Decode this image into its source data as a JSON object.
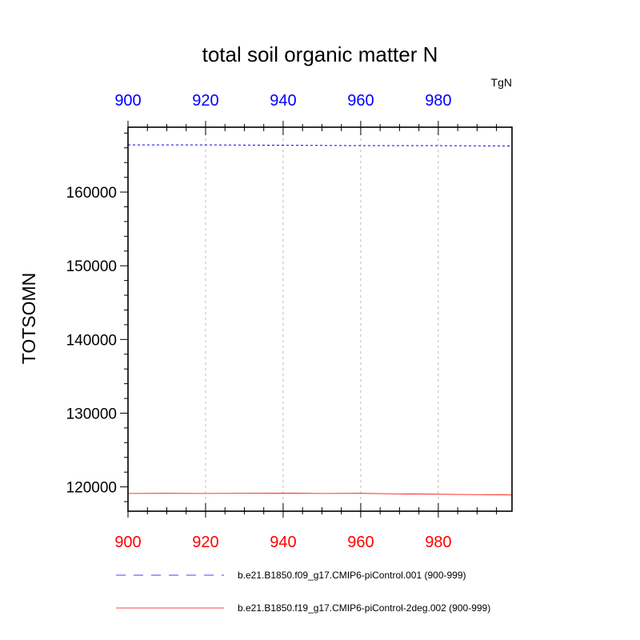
{
  "chart_data": {
    "type": "line",
    "title": "total soil organic matter N",
    "units": "TgN",
    "ylabel": "TOTSOMN",
    "xlim": [
      900,
      999
    ],
    "ylim": [
      116700,
      168800
    ],
    "x_ticks": [
      900,
      920,
      940,
      960,
      980
    ],
    "y_ticks": [
      120000,
      130000,
      140000,
      150000,
      160000
    ],
    "y_tick_labels": [
      "120000",
      "130000",
      "140000",
      "150000",
      "160000"
    ],
    "x_tick_labels_top": [
      "900",
      "920",
      "940",
      "960",
      "980"
    ],
    "x_tick_labels_bottom": [
      "900",
      "920",
      "940",
      "960",
      "980"
    ],
    "top_axis_color": "#0000ff",
    "bottom_axis_color": "#ff0000",
    "vertical_grid": true,
    "series": [
      {
        "name": "b.e21.B1850.f09_g17.CMIP6-piControl.001 (900-999)",
        "color": "#0000ff",
        "style": "dashed",
        "x": [
          900,
          920,
          940,
          960,
          980,
          999
        ],
        "y": [
          166400,
          166400,
          166350,
          166300,
          166300,
          166250
        ]
      },
      {
        "name": "b.e21.B1850.f19_g17.CMIP6-piControl-2deg.002 (900-999)",
        "color": "#ff0000",
        "style": "solid",
        "x": [
          900,
          910,
          920,
          930,
          940,
          950,
          960,
          970,
          980,
          990,
          999
        ],
        "y": [
          119100,
          119120,
          119100,
          119130,
          119150,
          119100,
          119120,
          119050,
          119000,
          118950,
          118900
        ]
      }
    ]
  }
}
